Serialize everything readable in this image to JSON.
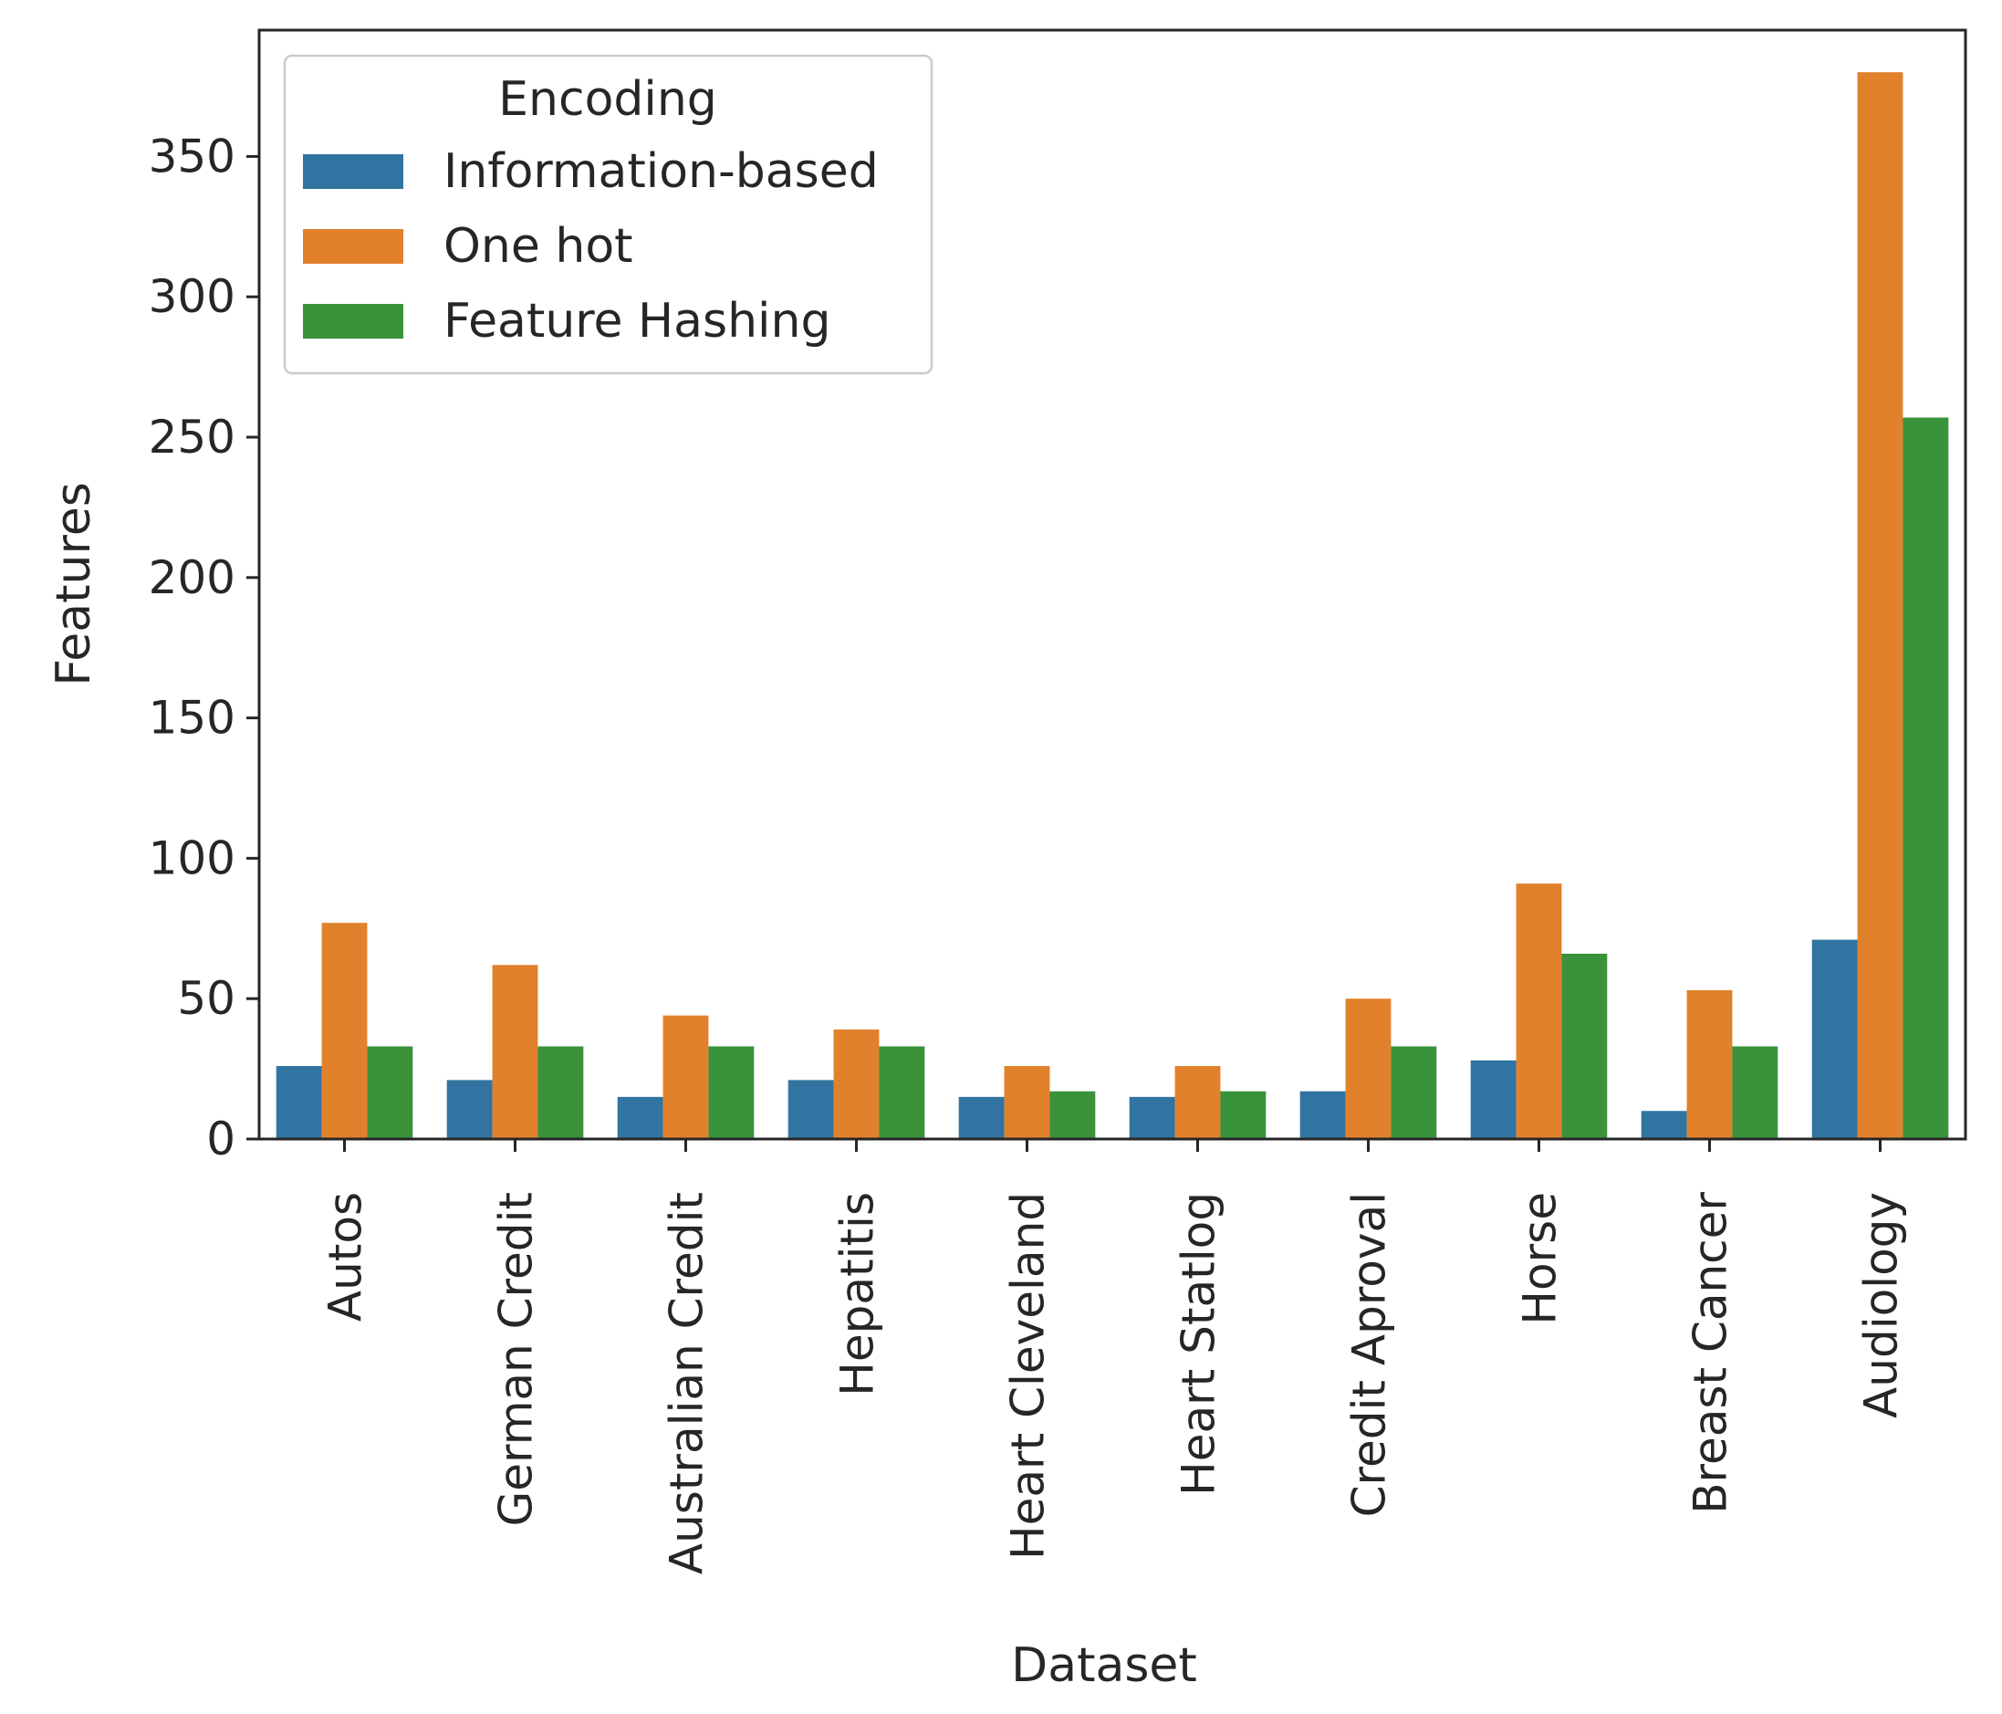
{
  "chart_data": {
    "type": "bar",
    "title": "",
    "xlabel": "Dataset",
    "ylabel": "Features",
    "ylim": [
      0,
      395
    ],
    "yticks": [
      0,
      50,
      100,
      150,
      200,
      250,
      300,
      350
    ],
    "categories": [
      "Autos",
      "German Credit",
      "Australian Credit",
      "Hepatitis",
      "Heart Cleveland",
      "Heart Statlog",
      "Credit Aproval",
      "Horse",
      "Breast Cancer",
      "Audiology"
    ],
    "series": [
      {
        "name": "Information-based",
        "color": "#3274a1",
        "values": [
          26,
          21,
          15,
          21,
          15,
          15,
          17,
          28,
          10,
          71
        ]
      },
      {
        "name": "One hot",
        "color": "#e1812c",
        "values": [
          77,
          62,
          44,
          39,
          26,
          26,
          50,
          91,
          53,
          380
        ]
      },
      {
        "name": "Feature Hashing",
        "color": "#3a923a",
        "values": [
          33,
          33,
          33,
          33,
          17,
          17,
          33,
          66,
          33,
          257
        ]
      }
    ],
    "legend": {
      "title": "Encoding",
      "placement": "top-left"
    },
    "grid": false
  }
}
